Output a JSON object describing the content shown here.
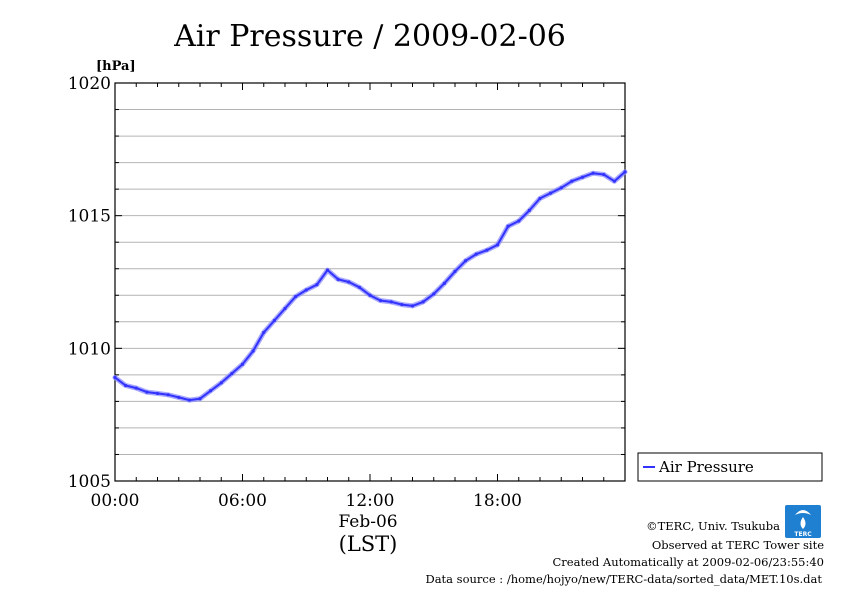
{
  "chart_data": {
    "type": "line",
    "title": "Air Pressure / 2009-02-06",
    "ylabel": "[hPa]",
    "xlabel_date": "Feb-06",
    "xlabel_tz": "(LST)",
    "ylim": [
      1005,
      1020
    ],
    "xlim_hours": [
      0,
      24
    ],
    "y_ticks": [
      "1005",
      "1010",
      "1015",
      "1020"
    ],
    "x_ticks": [
      "00:00",
      "06:00",
      "12:00",
      "18:00"
    ],
    "grid": true,
    "legend_position": "bottom-right",
    "series": [
      {
        "name": "Air Pressure",
        "color": "#3333ff",
        "x_hours": [
          0,
          0.5,
          1,
          1.5,
          2,
          2.5,
          3,
          3.5,
          4,
          4.5,
          5,
          5.5,
          6,
          6.5,
          7,
          7.5,
          8,
          8.5,
          9,
          9.5,
          10,
          10.5,
          11,
          11.5,
          12,
          12.5,
          13,
          13.5,
          14,
          14.5,
          15,
          15.5,
          16,
          16.5,
          17,
          17.5,
          18,
          18.5,
          19,
          19.5,
          20,
          20.5,
          21,
          21.5,
          22,
          22.5,
          23,
          23.5,
          24
        ],
        "values": [
          1008.9,
          1008.6,
          1008.5,
          1008.35,
          1008.3,
          1008.25,
          1008.15,
          1008.05,
          1008.1,
          1008.4,
          1008.7,
          1009.05,
          1009.4,
          1009.9,
          1010.6,
          1011.05,
          1011.5,
          1011.95,
          1012.2,
          1012.4,
          1012.95,
          1012.6,
          1012.5,
          1012.3,
          1012.0,
          1011.8,
          1011.75,
          1011.65,
          1011.6,
          1011.75,
          1012.05,
          1012.45,
          1012.9,
          1013.3,
          1013.55,
          1013.7,
          1013.9,
          1014.6,
          1014.8,
          1015.2,
          1015.65,
          1015.85,
          1016.05,
          1016.3,
          1016.45,
          1016.6,
          1016.55,
          1016.3,
          1016.65
        ]
      }
    ]
  },
  "footer": {
    "copyright": "©TERC, Univ. Tsukuba",
    "observed": "Observed at TERC Tower site",
    "created": "Created Automatically at 2009-02-06/23:55:40",
    "source": "Data source : /home/hojyo/new/TERC-data/sorted_data/MET.10s.dat",
    "logo_text": "TERC"
  }
}
